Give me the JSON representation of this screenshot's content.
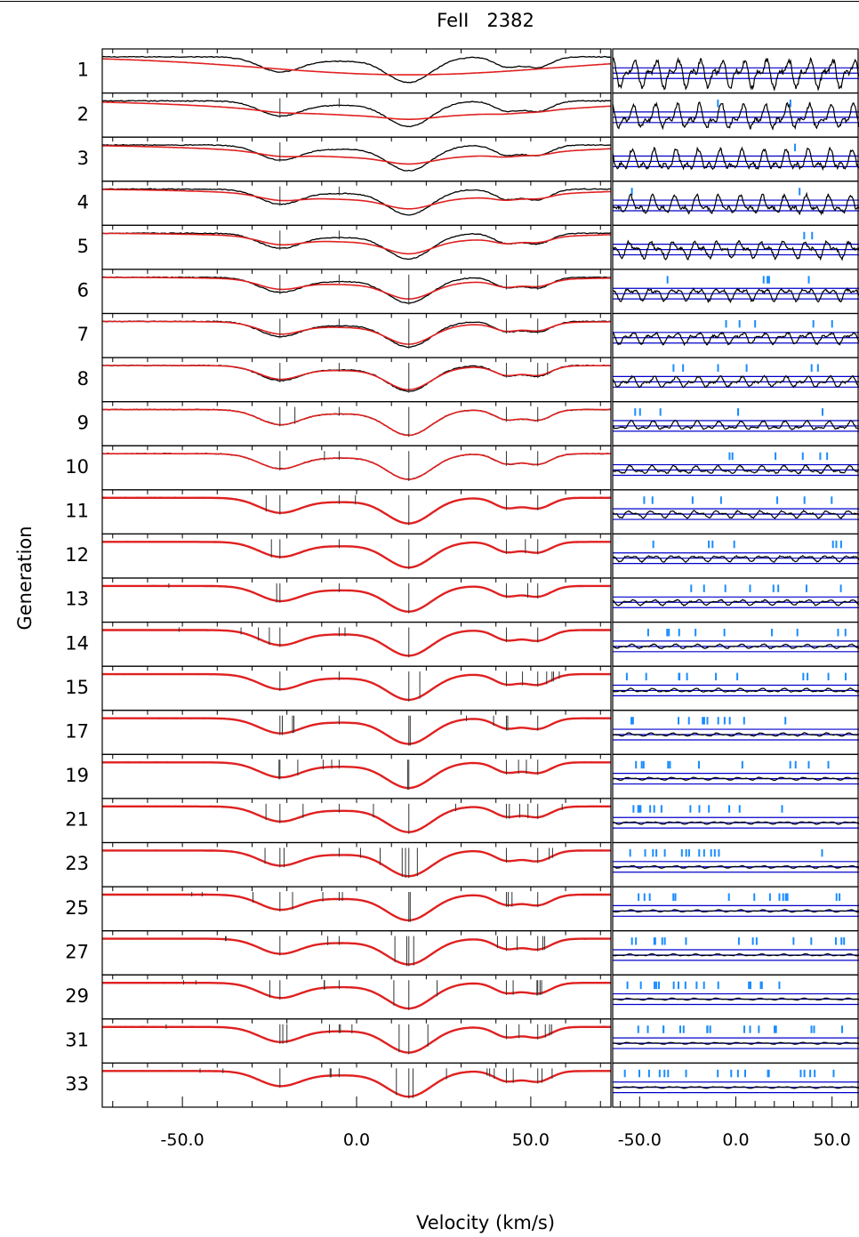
{
  "chart_data": {
    "type": "line",
    "title": "FeII   2382",
    "xlabel": "Velocity (km/s)",
    "ylabel": "Generation",
    "generations": [
      "1",
      "2",
      "3",
      "4",
      "5",
      "6",
      "7",
      "8",
      "9",
      "10",
      "11",
      "12",
      "13",
      "14",
      "15",
      "17",
      "19",
      "21",
      "23",
      "25",
      "27",
      "29",
      "31",
      "33"
    ],
    "left_panel": {
      "xlim": [
        -73,
        73
      ],
      "xticks": [
        -50,
        0,
        50
      ],
      "xtick_labels": [
        "-50.0",
        "0.0",
        "50.0"
      ],
      "series": [
        {
          "role": "data",
          "color": "#000000"
        },
        {
          "role": "model",
          "color": "#e02020"
        }
      ],
      "absorption_features_kms": [
        {
          "v": -22,
          "depth": 0.45
        },
        {
          "v": -5,
          "depth": 0.12
        },
        {
          "v": 15,
          "depth": 0.78
        },
        {
          "v": 43,
          "depth": 0.3
        },
        {
          "v": 52,
          "depth": 0.32
        }
      ],
      "component_counts": [
        0,
        2,
        1,
        2,
        2,
        5,
        5,
        6,
        6,
        6,
        7,
        7,
        8,
        10,
        11,
        12,
        12,
        13,
        14,
        14,
        15,
        16,
        17,
        18
      ]
    },
    "right_panel": {
      "xlim": [
        -64,
        64
      ],
      "xticks": [
        -50,
        0,
        50
      ],
      "xtick_labels": [
        "-50.0",
        "0.0",
        "50.0"
      ],
      "residual_color": "#000000",
      "band_color": "#0000cc",
      "marker_color": "#1a8cff",
      "residual_amplitude_by_generation": [
        3.0,
        2.6,
        2.3,
        2.0,
        1.8,
        1.4,
        1.25,
        1.1,
        0.95,
        0.85,
        0.75,
        0.68,
        0.6,
        0.45,
        0.4,
        0.34,
        0.3,
        0.28,
        0.26,
        0.24,
        0.22,
        0.2,
        0.19,
        0.18
      ]
    }
  }
}
